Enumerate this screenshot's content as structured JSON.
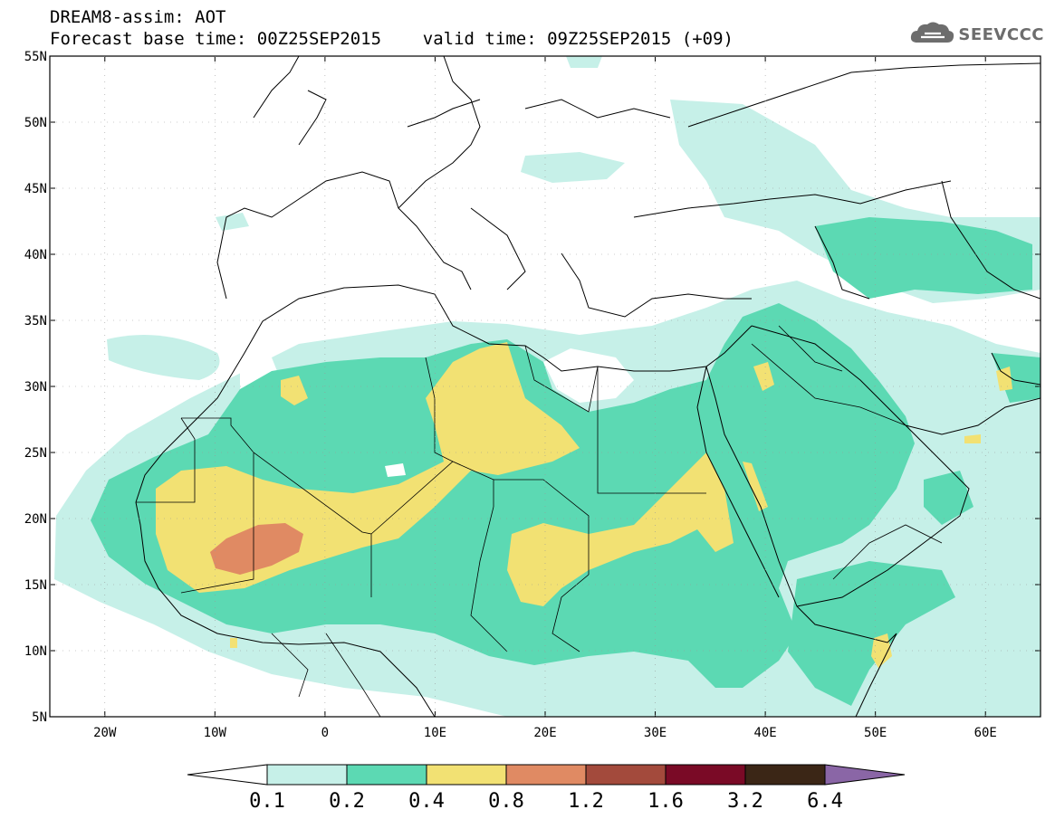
{
  "header": {
    "line1": "DREAM8-assim: AOT",
    "line2": "Forecast base time: 00Z25SEP2015    valid time: 09Z25SEP2015 (+09)"
  },
  "logo": {
    "text": "SEEVCCC",
    "icon": "cloud-icon"
  },
  "map": {
    "region": "North Africa, Middle East and Europe",
    "lat_ticks": [
      "55N",
      "50N",
      "45N",
      "40N",
      "35N",
      "30N",
      "25N",
      "20N",
      "15N",
      "10N",
      "5N"
    ],
    "lon_ticks": [
      "20W",
      "10W",
      "0",
      "10E",
      "20E",
      "30E",
      "40E",
      "50E",
      "60E"
    ],
    "lat_range": [
      5,
      55
    ],
    "lon_range": [
      -25,
      65
    ]
  },
  "colorbar": {
    "levels": [
      "0.1",
      "0.2",
      "0.4",
      "0.8",
      "1.2",
      "1.6",
      "3.2",
      "6.4"
    ],
    "colors": [
      "#ffffff",
      "#c6f0e8",
      "#5cd9b3",
      "#f2e173",
      "#e08a63",
      "#a34a3c",
      "#7a0a26",
      "#3b2616",
      "#8a66a6"
    ]
  }
}
